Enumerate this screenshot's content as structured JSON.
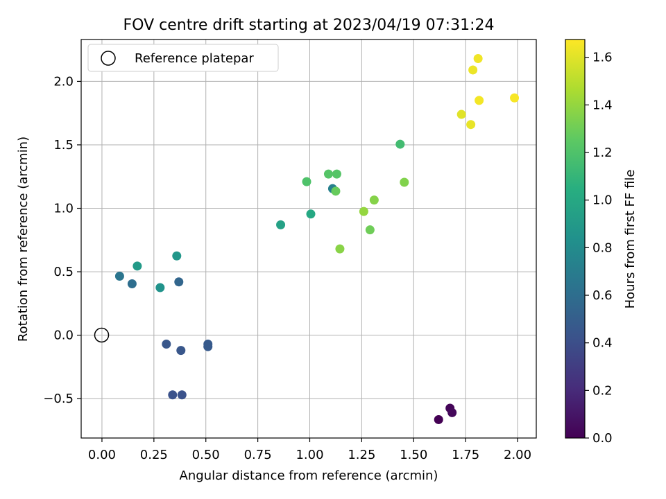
{
  "chart_data": {
    "type": "scatter",
    "title": "FOV centre drift starting at 2023/04/19 07:31:24",
    "xlabel": "Angular distance from reference (arcmin)",
    "ylabel": "Rotation from reference (arcmin)",
    "colorbar_label": "Hours from first FF file",
    "xlim": [
      -0.1,
      2.09
    ],
    "ylim": [
      -0.81,
      2.33
    ],
    "clim": [
      0,
      1.675
    ],
    "colormap": "viridis",
    "grid": true,
    "x_ticks": [
      0.0,
      0.25,
      0.5,
      0.75,
      1.0,
      1.25,
      1.5,
      1.75,
      2.0
    ],
    "x_tick_labels": [
      "0.00",
      "0.25",
      "0.50",
      "0.75",
      "1.00",
      "1.25",
      "1.50",
      "1.75",
      "2.00"
    ],
    "y_ticks": [
      -0.5,
      0.0,
      0.5,
      1.0,
      1.5,
      2.0
    ],
    "y_tick_labels": [
      "−0.5",
      "0.0",
      "0.5",
      "1.0",
      "1.5",
      "2.0"
    ],
    "colorbar_ticks": [
      0.0,
      0.2,
      0.4,
      0.6,
      0.8,
      1.0,
      1.2,
      1.4,
      1.6
    ],
    "colorbar_tick_labels": [
      "0.0",
      "0.2",
      "0.4",
      "0.6",
      "0.8",
      "1.0",
      "1.2",
      "1.4",
      "1.6"
    ],
    "legend": {
      "location": "upper-left",
      "entries": [
        {
          "label": "Reference platepar",
          "marker": "open-circle",
          "x": 0.0,
          "y": 0.0
        }
      ]
    },
    "points": [
      {
        "x": 1.62,
        "y": -0.665,
        "t": 0.0
      },
      {
        "x": 1.675,
        "y": -0.575,
        "t": 0.02
      },
      {
        "x": 1.685,
        "y": -0.61,
        "t": 0.04
      },
      {
        "x": 0.34,
        "y": -0.47,
        "t": 0.42
      },
      {
        "x": 0.385,
        "y": -0.47,
        "t": 0.42
      },
      {
        "x": 0.31,
        "y": -0.07,
        "t": 0.45
      },
      {
        "x": 0.38,
        "y": -0.12,
        "t": 0.45
      },
      {
        "x": 0.51,
        "y": -0.07,
        "t": 0.47
      },
      {
        "x": 0.51,
        "y": -0.09,
        "t": 0.47
      },
      {
        "x": 0.37,
        "y": 0.42,
        "t": 0.55
      },
      {
        "x": 0.145,
        "y": 0.405,
        "t": 0.6
      },
      {
        "x": 0.085,
        "y": 0.465,
        "t": 0.65
      },
      {
        "x": 1.11,
        "y": 1.155,
        "t": 0.72
      },
      {
        "x": 0.28,
        "y": 0.375,
        "t": 0.85
      },
      {
        "x": 0.36,
        "y": 0.625,
        "t": 0.88
      },
      {
        "x": 0.17,
        "y": 0.545,
        "t": 0.9
      },
      {
        "x": 0.86,
        "y": 0.87,
        "t": 0.95
      },
      {
        "x": 1.005,
        "y": 0.955,
        "t": 1.0
      },
      {
        "x": 1.435,
        "y": 1.505,
        "t": 1.15
      },
      {
        "x": 0.985,
        "y": 1.21,
        "t": 1.2
      },
      {
        "x": 1.09,
        "y": 1.27,
        "t": 1.22
      },
      {
        "x": 1.13,
        "y": 1.27,
        "t": 1.22
      },
      {
        "x": 1.125,
        "y": 1.135,
        "t": 1.28
      },
      {
        "x": 1.29,
        "y": 0.83,
        "t": 1.3
      },
      {
        "x": 1.455,
        "y": 1.205,
        "t": 1.35
      },
      {
        "x": 1.31,
        "y": 1.065,
        "t": 1.36
      },
      {
        "x": 1.145,
        "y": 0.68,
        "t": 1.37
      },
      {
        "x": 1.26,
        "y": 0.975,
        "t": 1.4
      },
      {
        "x": 1.73,
        "y": 1.74,
        "t": 1.6
      },
      {
        "x": 1.775,
        "y": 1.66,
        "t": 1.62
      },
      {
        "x": 1.785,
        "y": 2.09,
        "t": 1.63
      },
      {
        "x": 1.81,
        "y": 2.18,
        "t": 1.64
      },
      {
        "x": 1.815,
        "y": 1.85,
        "t": 1.65
      },
      {
        "x": 1.985,
        "y": 1.87,
        "t": 1.66
      }
    ]
  }
}
